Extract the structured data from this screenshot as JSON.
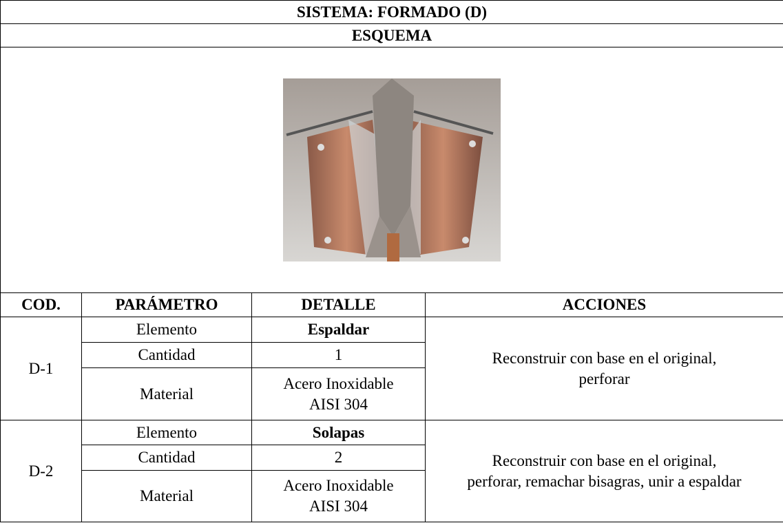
{
  "header": {
    "title": "SISTEMA: FORMADO (D)",
    "subtitle": "ESQUEMA"
  },
  "table": {
    "columns": [
      "COD.",
      "PARÁMETRO",
      "DETALLE",
      "ACCIONES"
    ],
    "groups": [
      {
        "code": "D-1",
        "rows": [
          [
            "Elemento",
            "Espaldar"
          ],
          [
            "Cantidad",
            "1"
          ],
          [
            "Material",
            "Acero Inoxidable AISI 304"
          ]
        ],
        "action": "Reconstruir con base en el original, perforar"
      },
      {
        "code": "D-2",
        "rows": [
          [
            "Elemento",
            "Solapas"
          ],
          [
            "Cantidad",
            "2"
          ],
          [
            "Material",
            "Acero Inoxidable AISI 304"
          ]
        ],
        "action": "Reconstruir con base en el original, perforar, remachar bisagras, unir a espaldar"
      }
    ]
  }
}
